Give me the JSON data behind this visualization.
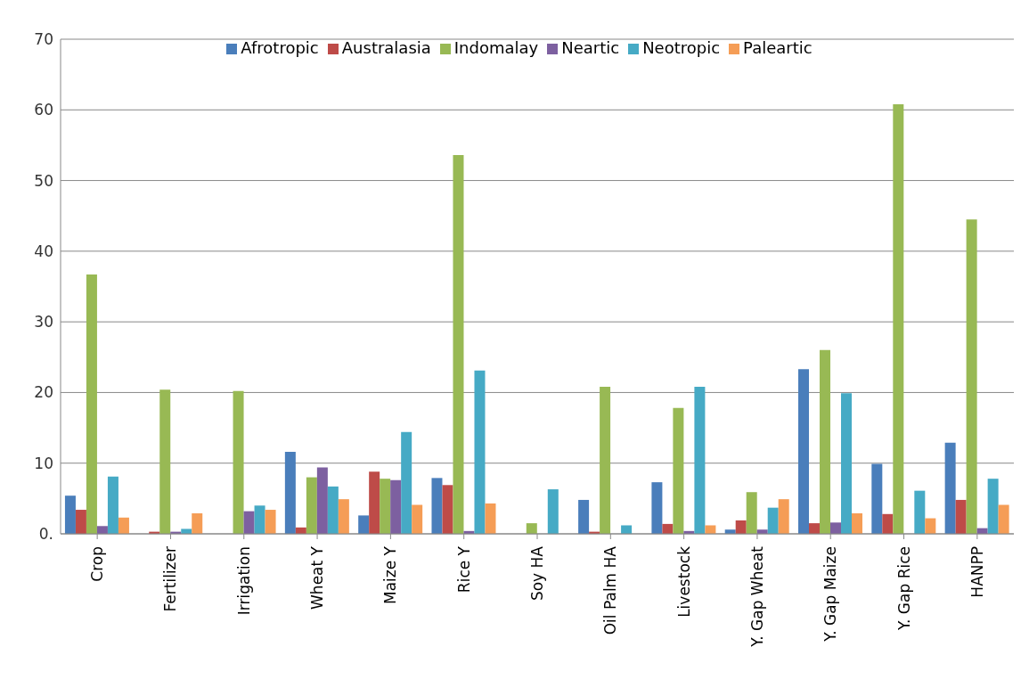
{
  "chart_data": {
    "type": "bar",
    "categories": [
      "Crop",
      "Fertilizer",
      "Irrigation",
      "Wheat Y",
      "Maize Y",
      "Rice Y",
      "Soy HA",
      "Oil Palm HA",
      "Livestock",
      "Y. Gap Wheat",
      "Y. Gap Maize",
      "Y. Gap Rice",
      "HANPP"
    ],
    "series": [
      {
        "name": "Afrotropic",
        "color": "#4a7ebb",
        "values": [
          5.4,
          0,
          0,
          11.6,
          2.6,
          7.9,
          0,
          4.8,
          7.3,
          0.6,
          23.3,
          9.9,
          12.9
        ]
      },
      {
        "name": "Australasia",
        "color": "#be4b48",
        "values": [
          3.4,
          0.3,
          0,
          0.9,
          8.8,
          6.9,
          0,
          0.3,
          1.4,
          1.9,
          1.5,
          2.8,
          4.8
        ]
      },
      {
        "name": "Indomalay",
        "color": "#98b954",
        "values": [
          36.7,
          20.4,
          20.2,
          8.0,
          7.8,
          53.6,
          1.5,
          20.8,
          17.8,
          5.9,
          26.0,
          60.8,
          44.5
        ]
      },
      {
        "name": "Neartic",
        "color": "#7d60a0",
        "values": [
          1.1,
          0.3,
          3.2,
          9.4,
          7.6,
          0.4,
          0,
          0,
          0.4,
          0.6,
          1.6,
          0,
          0.8
        ]
      },
      {
        "name": "Neotropic",
        "color": "#46aac5",
        "values": [
          8.1,
          0.7,
          4.0,
          6.7,
          14.4,
          23.1,
          6.3,
          1.2,
          20.8,
          3.7,
          19.9,
          6.1,
          7.8
        ]
      },
      {
        "name": "Paleartic",
        "color": "#f59d56",
        "values": [
          2.3,
          2.9,
          3.4,
          4.9,
          4.1,
          4.3,
          0,
          0,
          1.2,
          4.9,
          2.9,
          2.2,
          4.1
        ]
      }
    ],
    "ylim": [
      0,
      70
    ],
    "yticks": [
      {
        "value": 0,
        "label": "0."
      },
      10,
      20,
      30,
      40,
      50,
      60,
      70
    ],
    "grid": "y",
    "legend": "top"
  }
}
